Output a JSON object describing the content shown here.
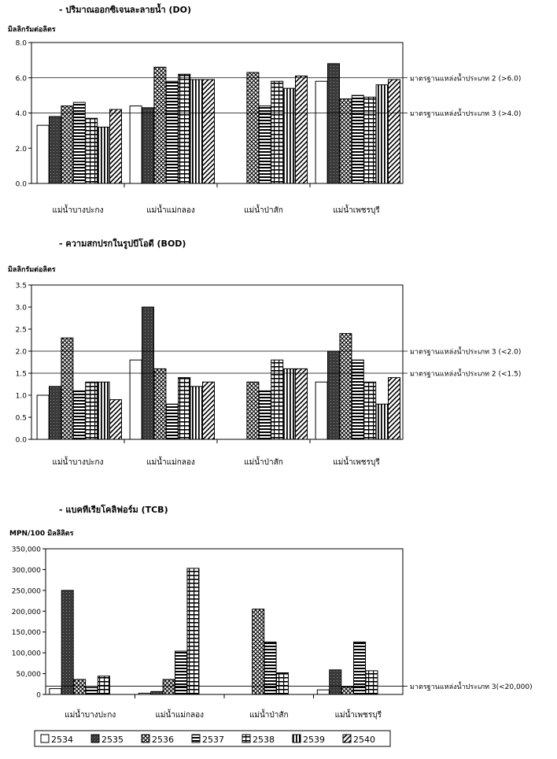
{
  "legend": [
    "2534",
    "2535",
    "2536",
    "2537",
    "2538",
    "2539",
    "2540"
  ],
  "chart_data": [
    {
      "type": "bar",
      "title": "- ปริมาณออกซิเจนละลายน้ำ (DO)",
      "ylabel": "มิลลิกรัมต่อลิตร",
      "xlabel": "",
      "ylim": [
        0,
        8
      ],
      "yticks": [
        "0.0",
        "2.0",
        "4.0",
        "6.0",
        "8.0"
      ],
      "categories": [
        "แม่น้ำบางปะกง",
        "แม่น้ำแม่กลอง",
        "แม่น้ำป่าสัก",
        "แม่น้ำเพชรบุรี"
      ],
      "series": [
        {
          "name": "2534",
          "values": [
            3.3,
            4.4,
            null,
            5.8
          ]
        },
        {
          "name": "2535",
          "values": [
            3.8,
            4.3,
            null,
            6.8
          ]
        },
        {
          "name": "2536",
          "values": [
            4.4,
            6.6,
            6.3,
            4.8
          ]
        },
        {
          "name": "2537",
          "values": [
            4.6,
            5.8,
            4.4,
            5.0
          ]
        },
        {
          "name": "2538",
          "values": [
            3.7,
            6.2,
            5.8,
            4.9
          ]
        },
        {
          "name": "2539",
          "values": [
            3.2,
            5.9,
            5.4,
            5.6
          ]
        },
        {
          "name": "2540",
          "values": [
            4.2,
            5.9,
            6.1,
            5.9
          ]
        }
      ],
      "reference_lines": [
        {
          "value": 6.0,
          "label": "มาตรฐานแหล่งน้ำประเภท 2 (>6.0)"
        },
        {
          "value": 4.0,
          "label": "มาตรฐานแหล่งน้ำประเภท 3 (>4.0)"
        }
      ]
    },
    {
      "type": "bar",
      "title": "- ความสกปรกในรูปบีโอดี (BOD)",
      "ylabel": "มิลลิกรัมต่อลิตร",
      "xlabel": "",
      "ylim": [
        0,
        3.5
      ],
      "yticks": [
        "0.0",
        "0.5",
        "1.0",
        "1.5",
        "2.0",
        "2.5",
        "3.0",
        "3.5"
      ],
      "categories": [
        "แม่น้ำบางปะกง",
        "แม่น้ำแม่กลอง",
        "แม่น้ำป่าสัก",
        "แม่น้ำเพชรบุรี"
      ],
      "series": [
        {
          "name": "2534",
          "values": [
            1.0,
            1.8,
            null,
            1.3
          ]
        },
        {
          "name": "2535",
          "values": [
            1.2,
            3.0,
            null,
            2.0
          ]
        },
        {
          "name": "2536",
          "values": [
            2.3,
            1.6,
            1.3,
            2.4
          ]
        },
        {
          "name": "2537",
          "values": [
            1.1,
            0.8,
            1.1,
            1.8
          ]
        },
        {
          "name": "2538",
          "values": [
            1.3,
            1.4,
            1.8,
            1.3
          ]
        },
        {
          "name": "2539",
          "values": [
            1.3,
            1.2,
            1.6,
            0.8
          ]
        },
        {
          "name": "2540",
          "values": [
            0.9,
            1.3,
            1.6,
            1.4
          ]
        }
      ],
      "reference_lines": [
        {
          "value": 2.0,
          "label": "มาตรฐานแหล่งน้ำประเภท 3 (<2.0)"
        },
        {
          "value": 1.5,
          "label": "มาตรฐานแหล่งน้ำประเภท 2 (<1.5)"
        }
      ]
    },
    {
      "type": "bar",
      "title": "- แบคทีเรียโคลิฟอร์ม (TCB)",
      "ylabel": "MPN/100 มิลลิลิตร",
      "xlabel": "",
      "ylim": [
        0,
        350000
      ],
      "yticks": [
        "0",
        "50,000",
        "100,000",
        "150,000",
        "200,000",
        "250,000",
        "300,000",
        "350,000"
      ],
      "categories": [
        "แม่น้ำบางปะกง",
        "แม่น้ำแม่กลอง",
        "แม่น้ำป่าสัก",
        "แม่น้ำเพชรบุรี"
      ],
      "series": [
        {
          "name": "2534",
          "values": [
            14000,
            3000,
            null,
            11000
          ]
        },
        {
          "name": "2535",
          "values": [
            250000,
            7000,
            null,
            59000
          ]
        },
        {
          "name": "2536",
          "values": [
            36000,
            36000,
            205000,
            18000
          ]
        },
        {
          "name": "2537",
          "values": [
            17000,
            104000,
            126000,
            126000
          ]
        },
        {
          "name": "2538",
          "values": [
            44000,
            303000,
            52000,
            57000
          ]
        },
        {
          "name": "2539",
          "values": [
            null,
            null,
            null,
            null
          ]
        },
        {
          "name": "2540",
          "values": [
            null,
            null,
            null,
            null
          ]
        }
      ],
      "reference_lines": [
        {
          "value": 20000,
          "label": "มาตรฐานแหล่งน้ำประเภท 3(<20,000)"
        }
      ]
    }
  ]
}
